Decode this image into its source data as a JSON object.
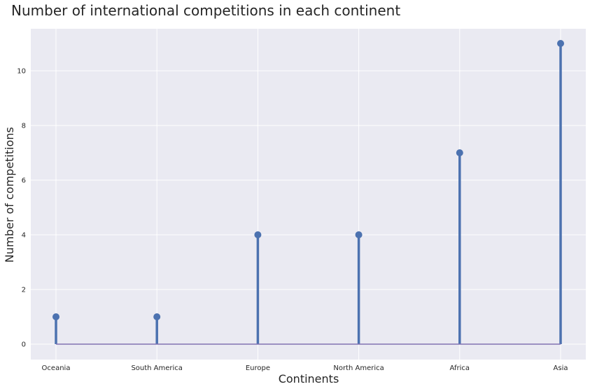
{
  "chart_data": {
    "type": "lollipop",
    "title": "Number of international competitions in each continent",
    "xlabel": "Continents",
    "ylabel": "Number of competitions",
    "categories": [
      "Oceania",
      "South America",
      "Europe",
      "North America",
      "Africa",
      "Asia"
    ],
    "values": [
      1,
      1,
      4,
      4,
      7,
      11
    ],
    "ylim": [
      -0.55,
      11.55
    ],
    "yticks": [
      0,
      2,
      4,
      6,
      8,
      10
    ],
    "grid": true,
    "colors": {
      "background": "#eaeaf2",
      "grid": "#ffffff",
      "stem": "#4c72b0",
      "marker": "#4c72b0",
      "baseline": "#8172b2"
    }
  }
}
